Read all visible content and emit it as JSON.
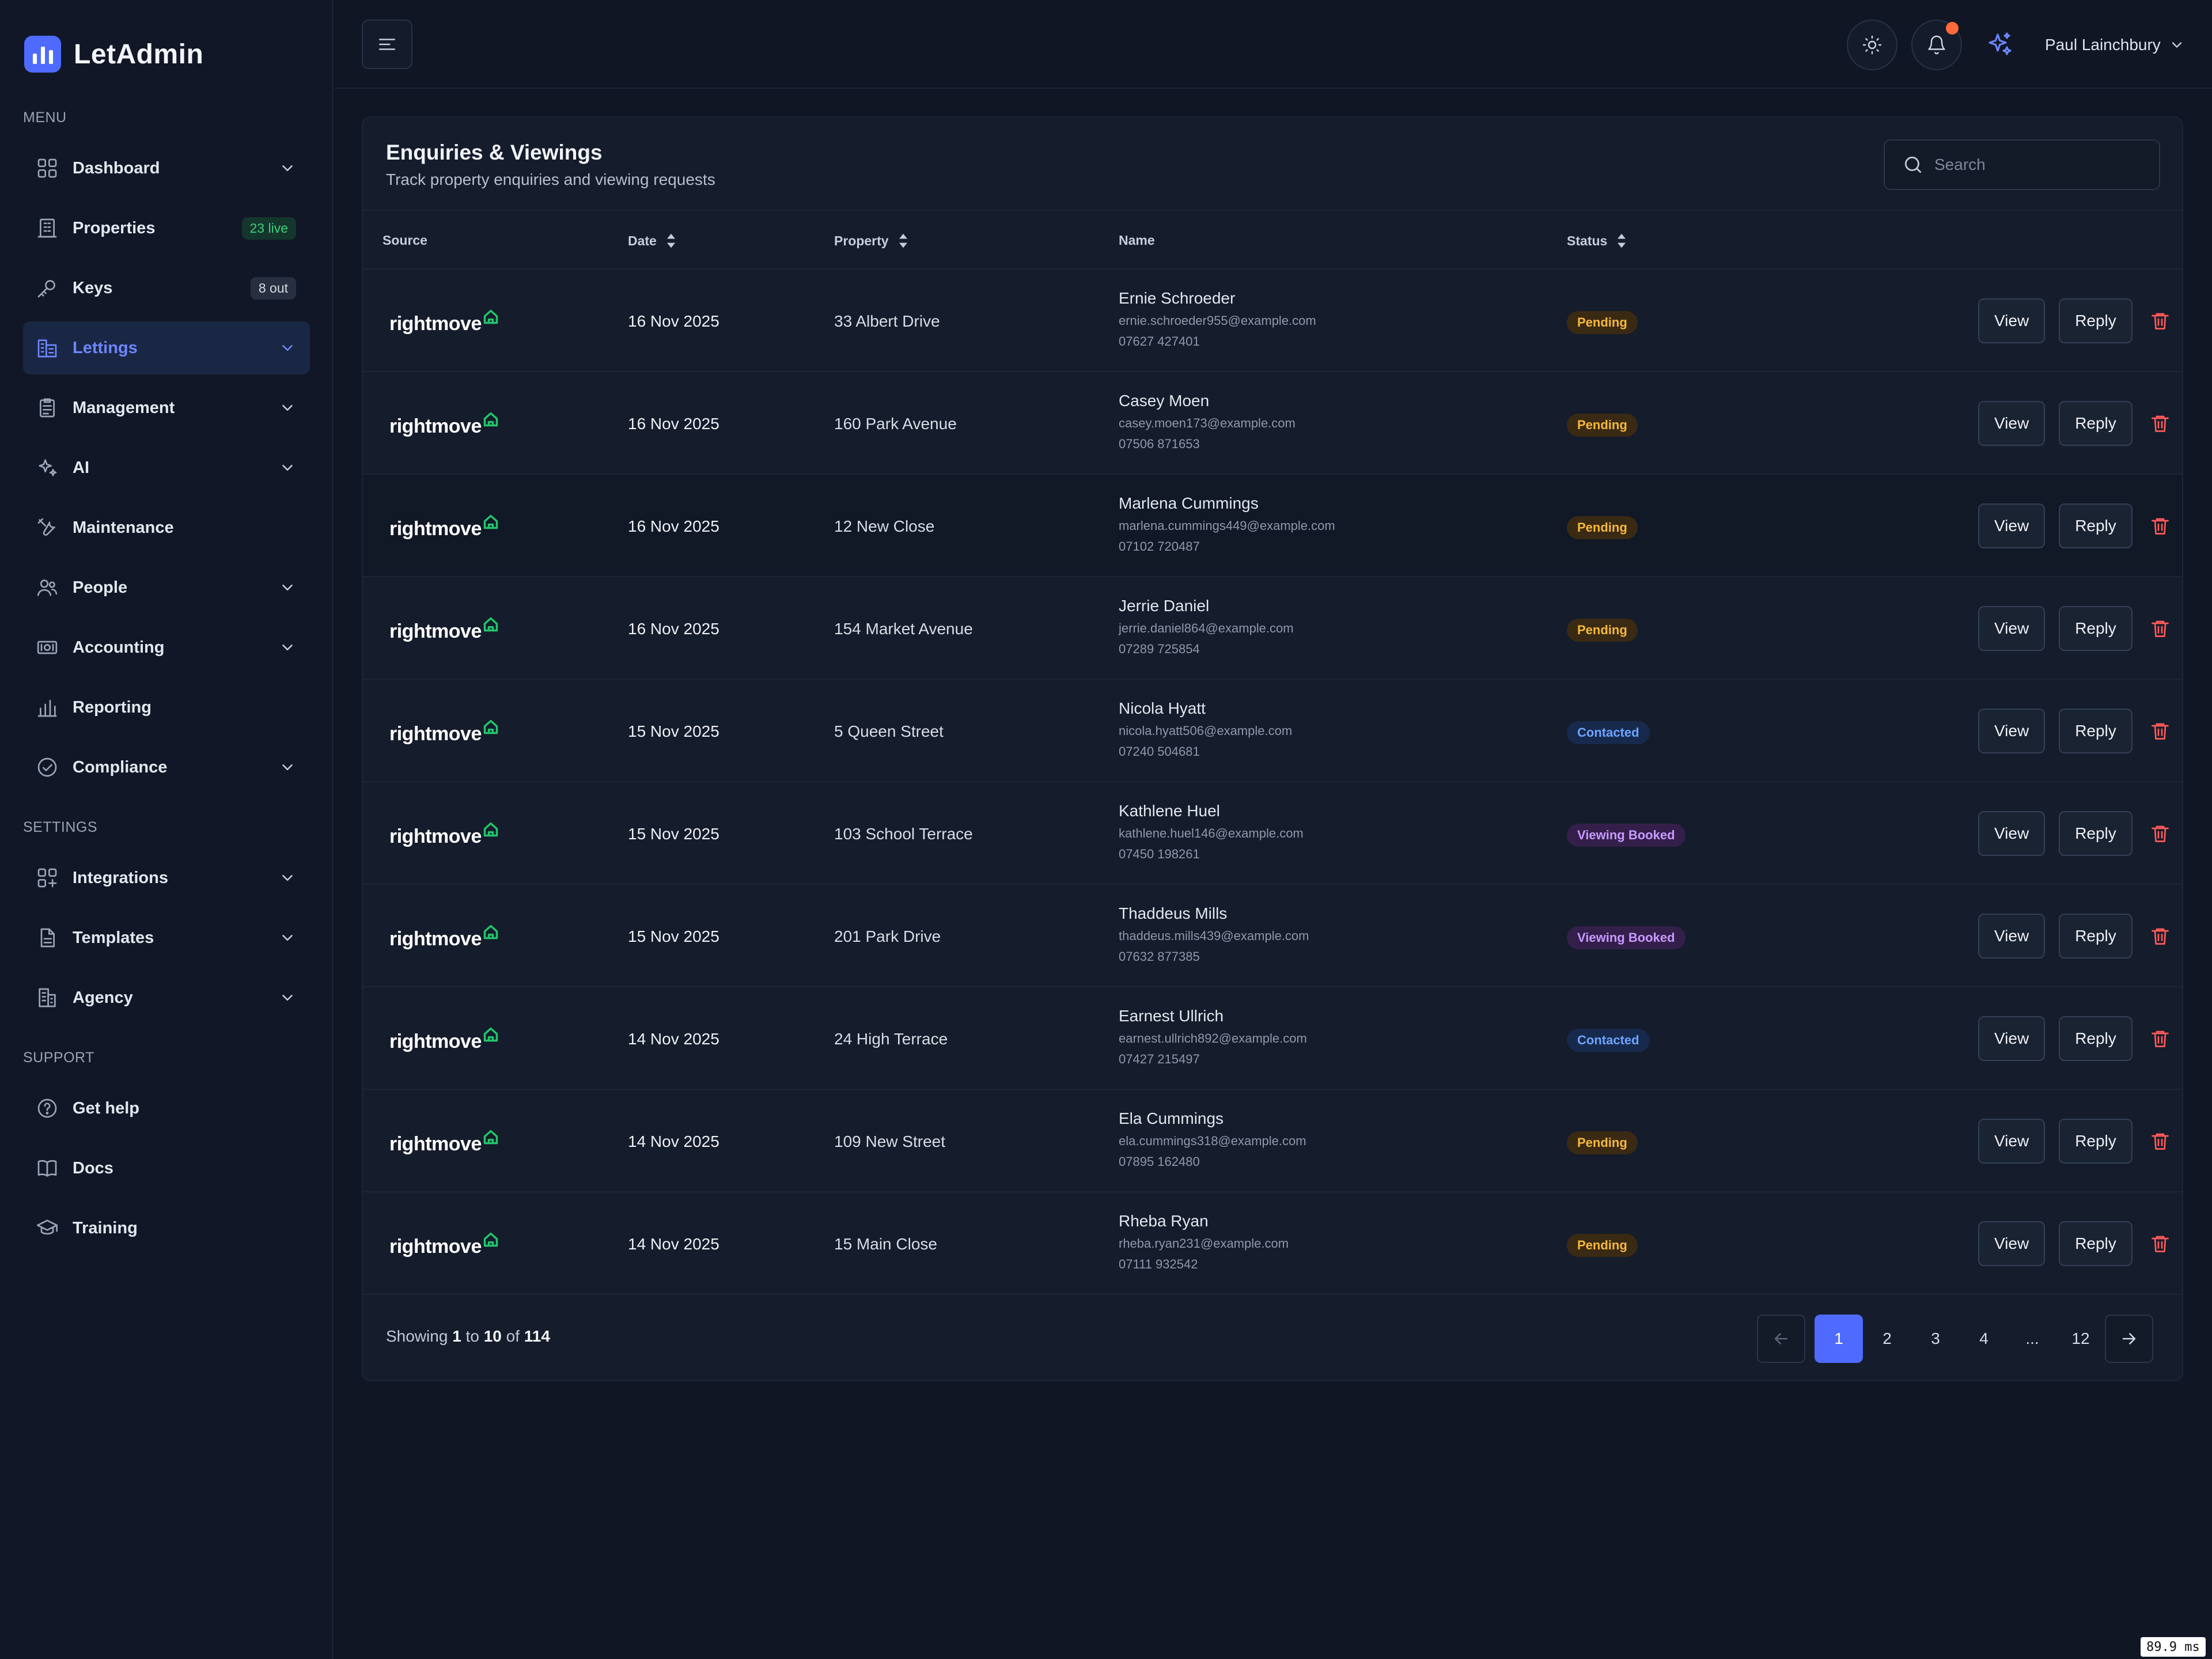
{
  "app": {
    "name": "LetAdmin",
    "brand_color": "#4f6bff"
  },
  "sidebar": {
    "menu_label": "MENU",
    "settings_label": "SETTINGS",
    "support_label": "SUPPORT",
    "menu_items": [
      {
        "label": "Dashboard",
        "icon": "grid-icon",
        "chevron": true
      },
      {
        "label": "Properties",
        "icon": "building-icon",
        "badge": "23 live"
      },
      {
        "label": "Keys",
        "icon": "key-icon",
        "badge": "8 out"
      },
      {
        "label": "Lettings",
        "icon": "lettings-icon",
        "chevron": true,
        "active": true
      },
      {
        "label": "Management",
        "icon": "clipboard-icon",
        "chevron": true
      },
      {
        "label": "AI",
        "icon": "sparkles-icon",
        "chevron": true
      },
      {
        "label": "Maintenance",
        "icon": "tools-icon"
      },
      {
        "label": "People",
        "icon": "people-icon",
        "chevron": true
      },
      {
        "label": "Accounting",
        "icon": "banknote-icon",
        "chevron": true
      },
      {
        "label": "Reporting",
        "icon": "bar-chart-icon"
      },
      {
        "label": "Compliance",
        "icon": "check-circle-icon",
        "chevron": true
      }
    ],
    "settings_items": [
      {
        "label": "Integrations",
        "icon": "integrations-icon",
        "chevron": true
      },
      {
        "label": "Templates",
        "icon": "document-icon",
        "chevron": true
      },
      {
        "label": "Agency",
        "icon": "agency-icon",
        "chevron": true
      }
    ],
    "support_items": [
      {
        "label": "Get help",
        "icon": "help-icon"
      },
      {
        "label": "Docs",
        "icon": "book-icon"
      },
      {
        "label": "Training",
        "icon": "graduation-cap-icon"
      }
    ]
  },
  "topbar": {
    "user_name": "Paul Lainchbury",
    "has_notification": true
  },
  "card": {
    "title": "Enquiries & Viewings",
    "subtitle": "Track property enquiries and viewing requests",
    "search_placeholder": "Search"
  },
  "table": {
    "columns": [
      "Source",
      "Date",
      "Property",
      "Name",
      "Status"
    ],
    "actions": {
      "view": "View",
      "reply": "Reply"
    },
    "rows": [
      {
        "source": "rightmove",
        "date": "16 Nov 2025",
        "property": "33 Albert Drive",
        "name": "Ernie Schroeder",
        "email": "ernie.schroeder955@example.com",
        "phone": "07627 427401",
        "status": "Pending"
      },
      {
        "source": "rightmove",
        "date": "16 Nov 2025",
        "property": "160 Park Avenue",
        "name": "Casey Moen",
        "email": "casey.moen173@example.com",
        "phone": "07506 871653",
        "status": "Pending"
      },
      {
        "source": "rightmove",
        "date": "16 Nov 2025",
        "property": "12 New Close",
        "name": "Marlena Cummings",
        "email": "marlena.cummings449@example.com",
        "phone": "07102 720487",
        "status": "Pending"
      },
      {
        "source": "rightmove",
        "date": "16 Nov 2025",
        "property": "154 Market Avenue",
        "name": "Jerrie Daniel",
        "email": "jerrie.daniel864@example.com",
        "phone": "07289 725854",
        "status": "Pending"
      },
      {
        "source": "rightmove",
        "date": "15 Nov 2025",
        "property": "5 Queen Street",
        "name": "Nicola Hyatt",
        "email": "nicola.hyatt506@example.com",
        "phone": "07240 504681",
        "status": "Contacted"
      },
      {
        "source": "rightmove",
        "date": "15 Nov 2025",
        "property": "103 School Terrace",
        "name": "Kathlene Huel",
        "email": "kathlene.huel146@example.com",
        "phone": "07450 198261",
        "status": "Viewing Booked"
      },
      {
        "source": "rightmove",
        "date": "15 Nov 2025",
        "property": "201 Park Drive",
        "name": "Thaddeus Mills",
        "email": "thaddeus.mills439@example.com",
        "phone": "07632 877385",
        "status": "Viewing Booked"
      },
      {
        "source": "rightmove",
        "date": "14 Nov 2025",
        "property": "24 High Terrace",
        "name": "Earnest Ullrich",
        "email": "earnest.ullrich892@example.com",
        "phone": "07427 215497",
        "status": "Contacted"
      },
      {
        "source": "rightmove",
        "date": "14 Nov 2025",
        "property": "109 New Street",
        "name": "Ela Cummings",
        "email": "ela.cummings318@example.com",
        "phone": "07895 162480",
        "status": "Pending"
      },
      {
        "source": "rightmove",
        "date": "14 Nov 2025",
        "property": "15 Main Close",
        "name": "Rheba Ryan",
        "email": "rheba.ryan231@example.com",
        "phone": "07111 932542",
        "status": "Pending"
      }
    ]
  },
  "pagination": {
    "showing_prefix": "Showing",
    "from": "1",
    "to_word": "to",
    "to": "10",
    "of_word": "of",
    "total": "114",
    "pages": [
      "1",
      "2",
      "3",
      "4",
      "...",
      "12"
    ],
    "current_page": "1"
  },
  "status_colors": {
    "Pending": "#f5b83a",
    "Contacted": "#6ea4ff",
    "Viewing Booked": "#c79aff"
  },
  "perf_badge": "89.9 ms"
}
